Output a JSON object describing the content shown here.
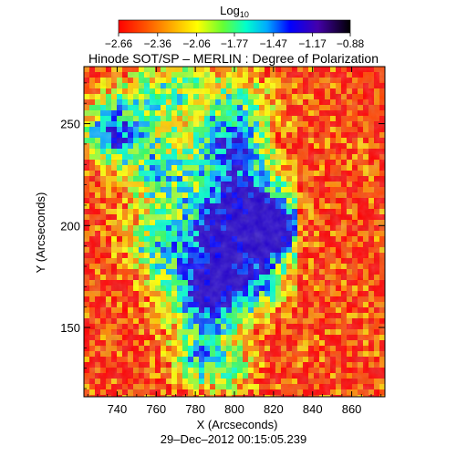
{
  "chart_data": {
    "type": "heatmap",
    "title": "Hinode SOT/SP – MERLIN : Degree of Polarization",
    "xlabel": "X (Arcseconds)",
    "ylabel": "Y (Arcseconds)",
    "date": "29–Dec–2012 00:15:05.239",
    "xlim": [
      723,
      877
    ],
    "ylim": [
      116,
      278
    ],
    "xticks": [
      "740",
      "760",
      "780",
      "800",
      "820",
      "840",
      "860"
    ],
    "xtick_values": [
      740,
      760,
      780,
      800,
      820,
      840,
      860
    ],
    "yticks": [
      "150",
      "200",
      "250"
    ],
    "ytick_values": [
      150,
      200,
      250
    ],
    "colorbar": {
      "title_base": "Log",
      "title_sub": "10",
      "tick_labels": [
        "−2.66",
        "−2.36",
        "−2.06",
        "−1.77",
        "−1.47",
        "−1.17",
        "−0.88"
      ],
      "tick_values": [
        -2.66,
        -2.36,
        -2.06,
        -1.77,
        -1.47,
        -1.17,
        -0.88
      ],
      "range": [
        -2.66,
        -0.88
      ],
      "colors": [
        "#ff0000",
        "#ff6600",
        "#ffcc00",
        "#ffff00",
        "#66ff33",
        "#00ffcc",
        "#00aaff",
        "#0000ff",
        "#4400aa",
        "#000000"
      ]
    },
    "field_description_regions": [
      {
        "x": [
          725,
          790
        ],
        "y": [
          210,
          278
        ],
        "level": "mixed high (green/blue)"
      },
      {
        "x": [
          765,
          830
        ],
        "y": [
          120,
          245
        ],
        "level": "high (green/blue)"
      },
      {
        "x": [
          830,
          877
        ],
        "y": [
          116,
          278
        ],
        "level": "low (red)"
      }
    ]
  }
}
